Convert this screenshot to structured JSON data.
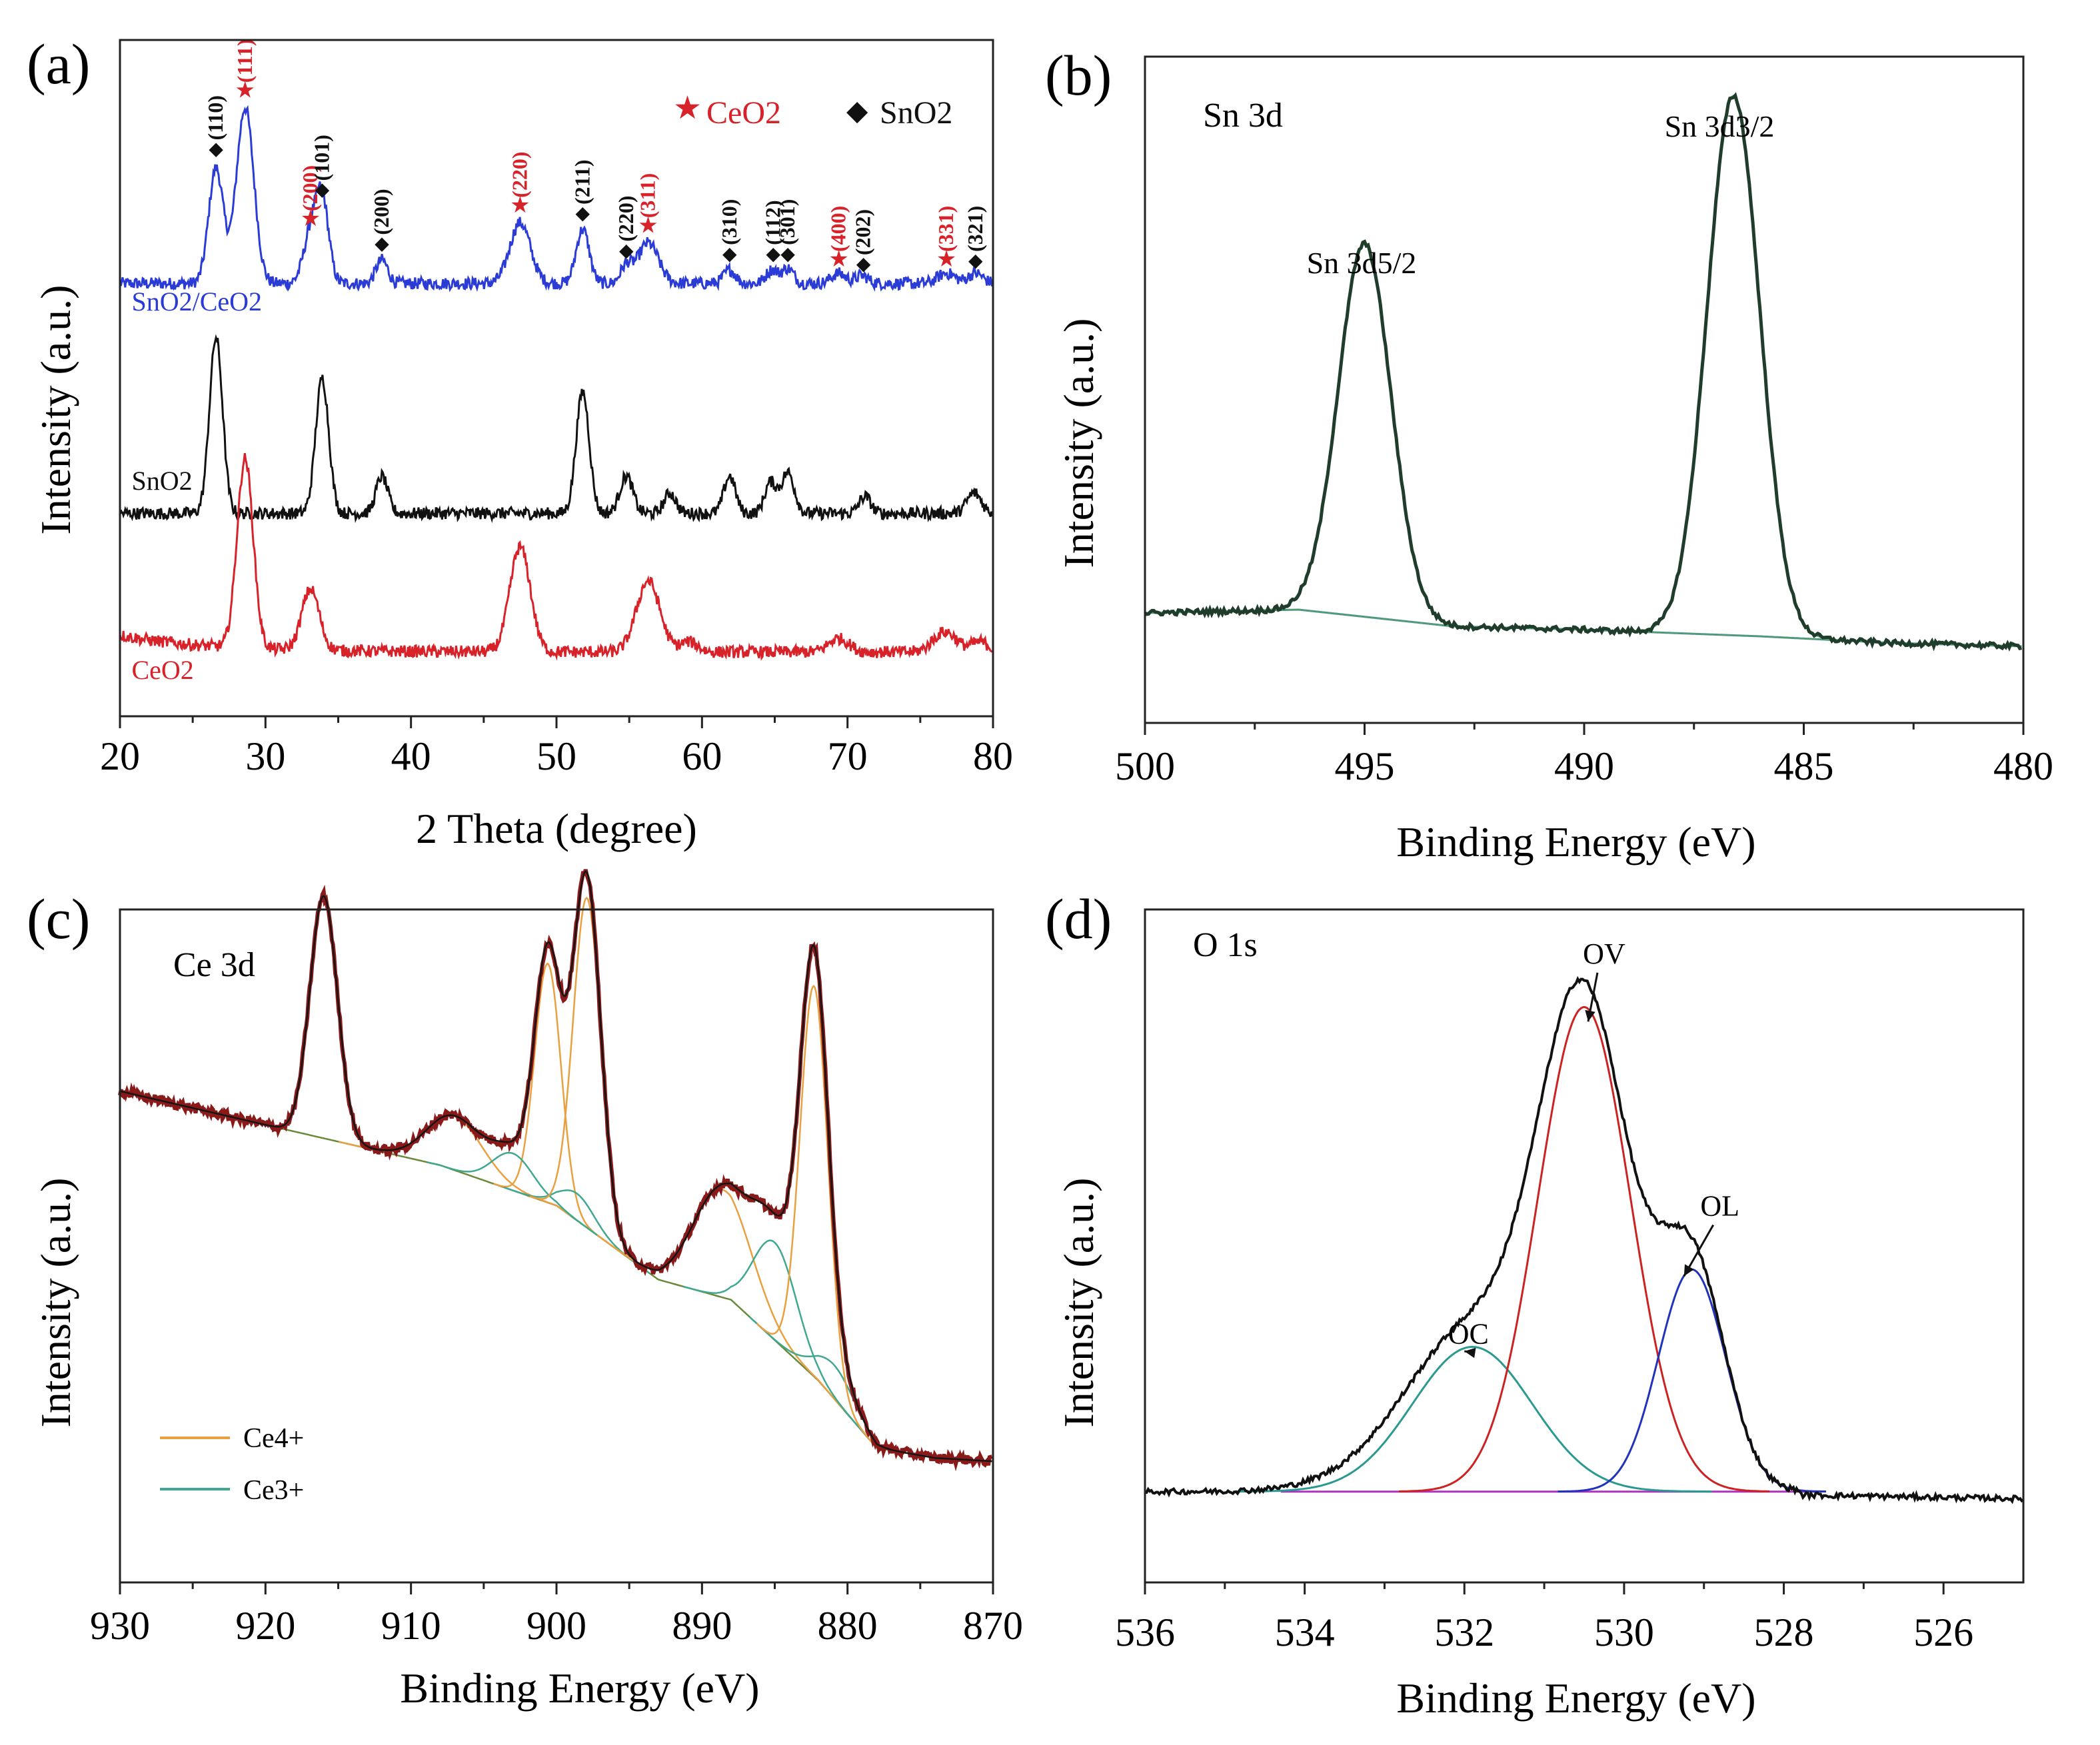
{
  "figure_caption": "",
  "colors": {
    "red": "#d8222a",
    "blue": "#2b3bd6",
    "black": "#111111",
    "dark_green": "#1f3d2a",
    "thin_green": "#49a06a",
    "bg_blue": "#6b6be0",
    "ce4": "#e8a040",
    "ce3": "#40a890",
    "fit_red": "#cc2222",
    "teal": "#2a9a90",
    "navy": "#2233bb",
    "magenta": "#b030c0",
    "bg_olive": "#6a8a3a",
    "ce_black": "#151515",
    "ce_brown": "#8a1a1a"
  },
  "chart_data": [
    {
      "id": "a",
      "type": "line",
      "panel_label": "(a)",
      "xlabel": "2 Theta (degree)",
      "ylabel": "Intensity (a.u.)",
      "xlim": [
        20,
        80
      ],
      "ylim": [
        0,
        10
      ],
      "xticks": [
        20,
        30,
        40,
        50,
        60,
        70,
        80
      ],
      "legend": [
        {
          "marker": "★",
          "label": "CeO2",
          "color_key": "red"
        },
        {
          "marker": "◆",
          "label": "SnO2",
          "color_key": "black"
        }
      ],
      "series": [
        {
          "name": "SnO2/CeO2",
          "color_key": "blue",
          "baseline": 6.4,
          "peaks": [
            [
              26.6,
              1.7,
              0.5
            ],
            [
              28.6,
              2.6,
              0.6
            ],
            [
              33.1,
              0.7,
              0.5
            ],
            [
              33.9,
              1.2,
              0.45
            ],
            [
              38.0,
              0.35,
              0.4
            ],
            [
              47.5,
              0.9,
              0.7
            ],
            [
              51.8,
              0.8,
              0.45
            ],
            [
              54.8,
              0.25,
              0.4
            ],
            [
              56.3,
              0.6,
              0.7
            ],
            [
              61.9,
              0.2,
              0.4
            ],
            [
              64.8,
              0.2,
              0.4
            ],
            [
              65.9,
              0.22,
              0.4
            ],
            [
              69.4,
              0.15,
              0.5
            ],
            [
              71.0,
              0.12,
              0.4
            ],
            [
              76.8,
              0.15,
              0.6
            ],
            [
              78.8,
              0.15,
              0.5
            ]
          ]
        },
        {
          "name": "SnO2",
          "color_key": "black",
          "baseline": 3.0,
          "peaks": [
            [
              26.6,
              2.6,
              0.45
            ],
            [
              33.9,
              2.0,
              0.45
            ],
            [
              38.0,
              0.55,
              0.4
            ],
            [
              51.8,
              1.8,
              0.45
            ],
            [
              54.8,
              0.55,
              0.45
            ],
            [
              57.8,
              0.3,
              0.4
            ],
            [
              61.9,
              0.55,
              0.4
            ],
            [
              64.7,
              0.45,
              0.4
            ],
            [
              65.9,
              0.6,
              0.45
            ],
            [
              71.2,
              0.25,
              0.4
            ],
            [
              78.7,
              0.3,
              0.5
            ]
          ]
        },
        {
          "name": "CeO2",
          "color_key": "red",
          "baseline": 0.95,
          "peaks": [
            [
              28.6,
              2.8,
              0.55
            ],
            [
              33.1,
              0.9,
              0.6
            ],
            [
              47.5,
              1.55,
              0.7
            ],
            [
              56.3,
              1.05,
              0.8
            ],
            [
              59.1,
              0.15,
              0.6
            ],
            [
              69.4,
              0.2,
              0.7
            ],
            [
              76.7,
              0.3,
              0.8
            ],
            [
              79.1,
              0.15,
              0.6
            ]
          ]
        }
      ],
      "annotations": [
        {
          "x": 26.6,
          "y": 8.3,
          "label": "(110)",
          "marker": "◆",
          "color_key": "black"
        },
        {
          "x": 28.6,
          "y": 9.15,
          "label": "(111)",
          "marker": "★",
          "color_key": "red"
        },
        {
          "x": 33.1,
          "y": 7.25,
          "label": "(200)",
          "marker": "★",
          "color_key": "red"
        },
        {
          "x": 33.9,
          "y": 7.7,
          "label": "(101)",
          "marker": "◆",
          "color_key": "black"
        },
        {
          "x": 38.0,
          "y": 6.9,
          "label": "(200)",
          "marker": "◆",
          "color_key": "black"
        },
        {
          "x": 47.5,
          "y": 7.45,
          "label": "(220)",
          "marker": "★",
          "color_key": "red"
        },
        {
          "x": 51.8,
          "y": 7.35,
          "label": "(211)",
          "marker": "◆",
          "color_key": "black"
        },
        {
          "x": 54.8,
          "y": 6.8,
          "label": "(220)",
          "marker": "◆",
          "color_key": "black"
        },
        {
          "x": 56.3,
          "y": 7.15,
          "label": "(311)",
          "marker": "★",
          "color_key": "red"
        },
        {
          "x": 61.9,
          "y": 6.75,
          "label": "(310)",
          "marker": "◆",
          "color_key": "black"
        },
        {
          "x": 64.9,
          "y": 6.75,
          "label": "(112)",
          "marker": "◆",
          "color_key": "black"
        },
        {
          "x": 65.9,
          "y": 6.75,
          "label": "(301)",
          "marker": "◆",
          "color_key": "black"
        },
        {
          "x": 69.4,
          "y": 6.65,
          "label": "(400)",
          "marker": "★",
          "color_key": "red"
        },
        {
          "x": 71.1,
          "y": 6.6,
          "label": "(202)",
          "marker": "◆",
          "color_key": "black"
        },
        {
          "x": 76.8,
          "y": 6.65,
          "label": "(331)",
          "marker": "★",
          "color_key": "red"
        },
        {
          "x": 78.8,
          "y": 6.65,
          "label": "(321)",
          "marker": "◆",
          "color_key": "black"
        }
      ],
      "curve_labels": [
        {
          "text": "SnO2/CeO2",
          "x": 20.8,
          "y": 6.0,
          "color_key": "blue"
        },
        {
          "text": "SnO2",
          "x": 20.8,
          "y": 3.35,
          "color_key": "black"
        },
        {
          "text": "CeO2",
          "x": 20.8,
          "y": 0.55,
          "color_key": "red"
        }
      ]
    },
    {
      "id": "b",
      "type": "line",
      "panel_label": "(b)",
      "inner_title": "Sn 3d",
      "xlabel": "Binding Energy (eV)",
      "ylabel": "Intensity (a.u.)",
      "xlim": [
        500,
        480
      ],
      "ylim": [
        0,
        10
      ],
      "xticks": [
        500,
        495,
        490,
        485,
        480
      ],
      "peaks": [
        {
          "label": "Sn 3d5/2",
          "x": 495.0,
          "height": 5.6
        },
        {
          "label": "Sn 3d3/2",
          "x": 486.6,
          "height": 8.1
        }
      ],
      "background": [
        [
          500,
          1.65
        ],
        [
          496.5,
          1.7
        ],
        [
          493,
          1.45
        ],
        [
          490,
          1.4
        ],
        [
          486,
          1.3
        ],
        [
          483,
          1.2
        ],
        [
          480,
          1.15
        ]
      ],
      "fit_width": 0.6
    },
    {
      "id": "c",
      "type": "line",
      "panel_label": "(c)",
      "inner_title": "Ce 3d",
      "xlabel": "Binding Energy (eV)",
      "ylabel": "Intensity (a.u.)",
      "xlim": [
        930,
        870
      ],
      "ylim": [
        0,
        10
      ],
      "xticks": [
        930,
        920,
        910,
        900,
        890,
        880,
        870
      ],
      "legend": [
        {
          "label": "Ce4+",
          "color_key": "ce4"
        },
        {
          "label": "Ce3+",
          "color_key": "ce3"
        }
      ],
      "background": [
        [
          930,
          7.3
        ],
        [
          919,
          6.75
        ],
        [
          908,
          6.2
        ],
        [
          900,
          5.6
        ],
        [
          893,
          4.5
        ],
        [
          888,
          4.2
        ],
        [
          882,
          3.0
        ],
        [
          878,
          2.0
        ],
        [
          874,
          1.85
        ],
        [
          870,
          1.8
        ]
      ],
      "components": [
        {
          "type": "Ce4+",
          "x": 916.0,
          "height": 3.6,
          "width": 0.95
        },
        {
          "type": "Ce4+",
          "x": 907.0,
          "height": 0.8,
          "width": 1.9
        },
        {
          "type": "Ce4+",
          "x": 900.6,
          "height": 3.55,
          "width": 0.9
        },
        {
          "type": "Ce3+",
          "x": 903.0,
          "height": 0.55,
          "width": 1.4
        },
        {
          "type": "Ce3+",
          "x": 898.6,
          "height": 0.4,
          "width": 1.2
        },
        {
          "type": "Ce4+",
          "x": 897.9,
          "height": 4.9,
          "width": 0.95
        },
        {
          "type": "Ce4+",
          "x": 888.6,
          "height": 1.6,
          "width": 2.0
        },
        {
          "type": "Ce3+",
          "x": 885.0,
          "height": 1.45,
          "width": 1.5
        },
        {
          "type": "Ce3+",
          "x": 880.9,
          "height": 0.5,
          "width": 1.4
        },
        {
          "type": "Ce4+",
          "x": 882.3,
          "height": 5.8,
          "width": 0.95
        }
      ]
    },
    {
      "id": "d",
      "type": "line",
      "panel_label": "(d)",
      "inner_title": "O 1s",
      "xlabel": "Binding Energy (eV)",
      "ylabel": "Intensity (a.u.)",
      "xlim": [
        536,
        525
      ],
      "ylim": [
        0,
        10
      ],
      "xticks": [
        536,
        534,
        532,
        530,
        528,
        526
      ],
      "baseline": 1.35,
      "components": [
        {
          "name": "OC",
          "x": 531.9,
          "height": 2.15,
          "width": 0.75,
          "color_key": "teal"
        },
        {
          "name": "OV",
          "x": 530.5,
          "height": 7.2,
          "width": 0.58,
          "color_key": "fit_red"
        },
        {
          "name": "OL",
          "x": 529.15,
          "height": 3.3,
          "width": 0.42,
          "color_key": "navy"
        }
      ],
      "peak_labels": [
        {
          "text": "OC",
          "x": 531.95,
          "y": 3.55
        },
        {
          "text": "OV",
          "x": 530.25,
          "y": 9.2
        },
        {
          "text": "OL",
          "x": 528.8,
          "y": 5.45
        }
      ]
    }
  ]
}
